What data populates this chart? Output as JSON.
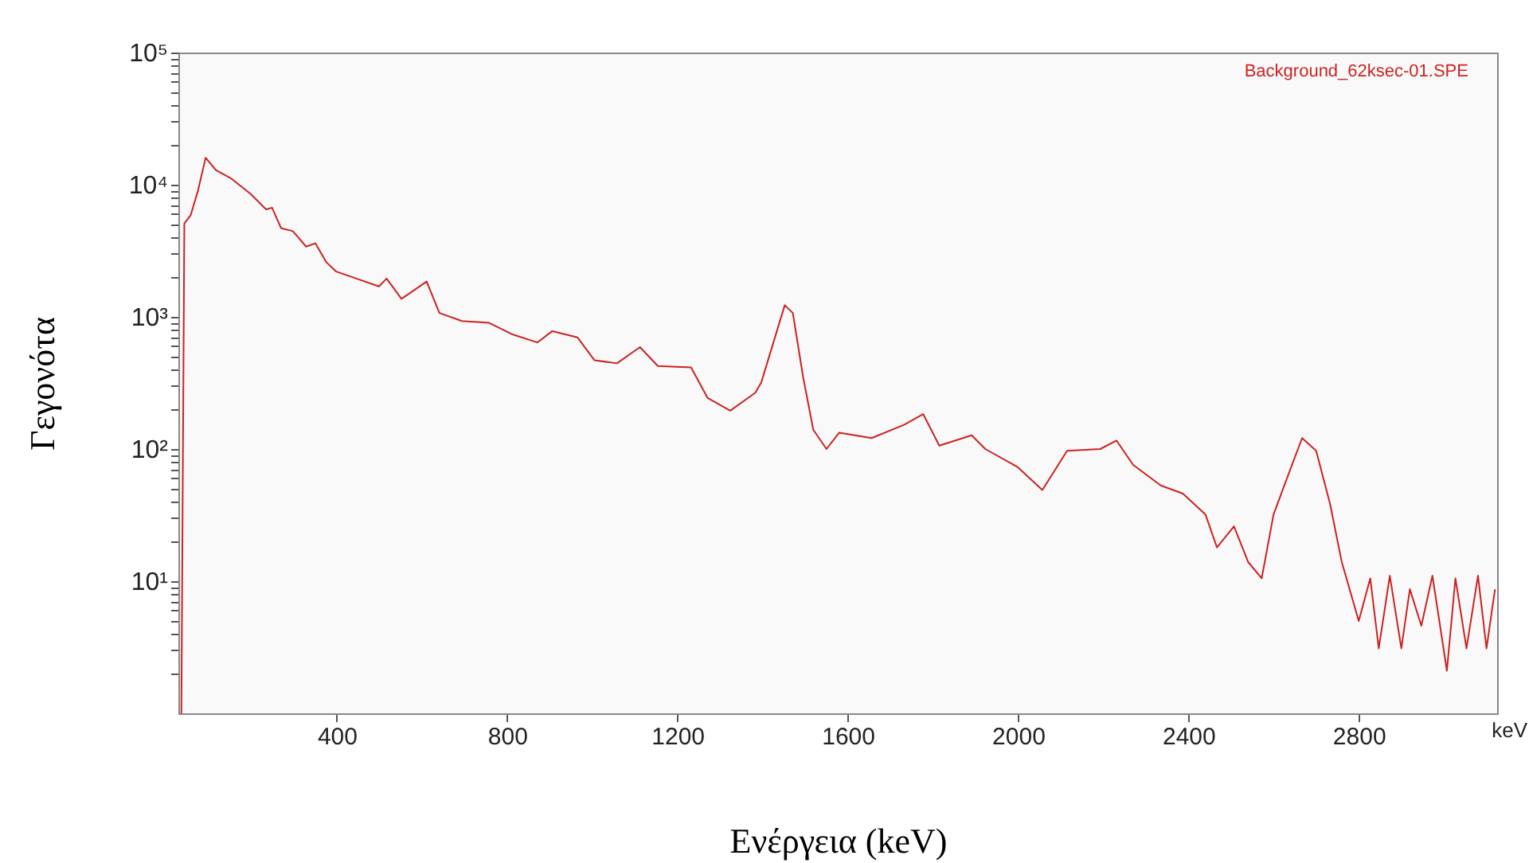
{
  "chart_data": {
    "type": "line",
    "xlabel": "Ενέργεια (keV)",
    "ylabel": "Γεγονότα",
    "annotations": [
      "Background_62ksec-01.SPE",
      "keV"
    ],
    "xlim": [
      28,
      3125
    ],
    "xticks": [
      400,
      800,
      1200,
      1600,
      2000,
      2400,
      2800
    ],
    "ylim": [
      1,
      100000
    ],
    "log": true,
    "yticks": [
      {
        "value": 2,
        "label": null
      },
      {
        "value": 3,
        "label": null
      },
      {
        "value": 4,
        "label": null
      },
      {
        "value": 5,
        "label": null
      },
      {
        "value": 6,
        "label": null
      },
      {
        "value": 7,
        "label": null
      },
      {
        "value": 8,
        "label": null
      },
      {
        "value": 9,
        "label": null
      },
      {
        "value": 10,
        "label": "10¹"
      },
      {
        "value": 20,
        "label": null
      },
      {
        "value": 30,
        "label": null
      },
      {
        "value": 40,
        "label": null
      },
      {
        "value": 50,
        "label": null
      },
      {
        "value": 60,
        "label": null
      },
      {
        "value": 70,
        "label": null
      },
      {
        "value": 80,
        "label": null
      },
      {
        "value": 90,
        "label": null
      },
      {
        "value": 100,
        "label": "10²"
      },
      {
        "value": 200,
        "label": null
      },
      {
        "value": 300,
        "label": null
      },
      {
        "value": 400,
        "label": null
      },
      {
        "value": 500,
        "label": null
      },
      {
        "value": 600,
        "label": null
      },
      {
        "value": 700,
        "label": null
      },
      {
        "value": 800,
        "label": null
      },
      {
        "value": 900,
        "label": null
      },
      {
        "value": 1000,
        "label": "10³"
      },
      {
        "value": 2000,
        "label": null
      },
      {
        "value": 3000,
        "label": null
      },
      {
        "value": 4000,
        "label": null
      },
      {
        "value": 5000,
        "label": null
      },
      {
        "value": 6000,
        "label": null
      },
      {
        "value": 7000,
        "label": null
      },
      {
        "value": 8000,
        "label": null
      },
      {
        "value": 9000,
        "label": null
      },
      {
        "value": 10000,
        "label": "10⁴"
      },
      {
        "value": 20000,
        "label": null
      },
      {
        "value": 30000,
        "label": null
      },
      {
        "value": 40000,
        "label": null
      },
      {
        "value": 50000,
        "label": null
      },
      {
        "value": 60000,
        "label": null
      },
      {
        "value": 70000,
        "label": null
      },
      {
        "value": 80000,
        "label": null
      },
      {
        "value": 90000,
        "label": null
      },
      {
        "value": 100000,
        "label": "10⁵"
      }
    ],
    "grid": false,
    "marker": "none",
    "line_style": "solid",
    "series": [
      {
        "color": "#cc2222",
        "x": [
          35,
          42,
          57,
          74,
          92,
          116,
          151,
          198,
          234,
          248,
          269,
          297,
          328,
          350,
          375,
          399,
          446,
          499,
          517,
          552,
          611,
          641,
          694,
          758,
          811,
          871,
          906,
          965,
          1005,
          1058,
          1112,
          1154,
          1232,
          1271,
          1324,
          1383,
          1397,
          1452,
          1471,
          1495,
          1519,
          1550,
          1580,
          1656,
          1733,
          1777,
          1815,
          1891,
          1923,
          1999,
          2057,
          2115,
          2193,
          2231,
          2270,
          2335,
          2387,
          2440,
          2467,
          2507,
          2540,
          2572,
          2600,
          2627,
          2667,
          2700,
          2733,
          2760,
          2800,
          2827,
          2847,
          2873,
          2900,
          2920,
          2947,
          2973,
          3007,
          3027,
          3053,
          3080,
          3100,
          3120
        ],
        "values": [
          1,
          5100,
          5900,
          9000,
          16000,
          12900,
          11200,
          8500,
          6500,
          6700,
          4700,
          4450,
          3400,
          3600,
          2600,
          2200,
          1950,
          1700,
          1950,
          1370,
          1850,
          1070,
          930,
          900,
          740,
          640,
          780,
          700,
          470,
          445,
          590,
          425,
          415,
          243,
          195,
          267,
          320,
          1225,
          1070,
          352,
          140,
          100,
          133,
          121,
          153,
          184,
          106,
          127,
          100,
          73,
          49,
          97,
          100,
          116,
          76,
          53,
          46,
          32,
          18,
          26,
          14,
          10.5,
          32,
          55,
          121,
          97,
          38,
          14,
          5,
          10.5,
          3.1,
          11,
          3.1,
          8.7,
          4.6,
          11,
          2.1,
          10.5,
          3.1,
          11,
          3.1,
          8.7
        ]
      }
    ]
  }
}
